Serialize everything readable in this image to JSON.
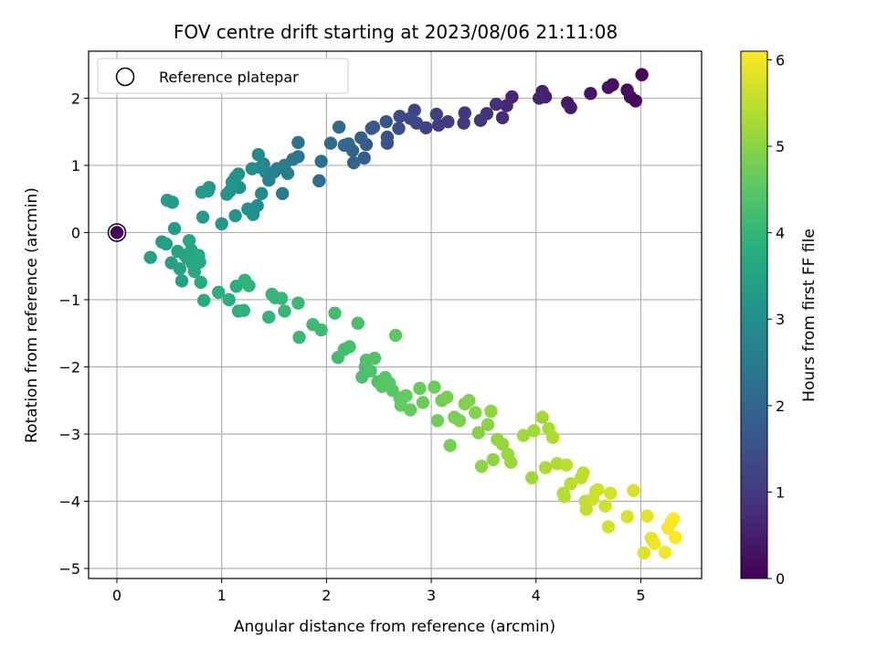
{
  "chart_data": {
    "type": "scatter",
    "title": "FOV centre drift starting at 2023/08/06 21:11:08",
    "xlabel": "Angular distance from reference (arcmin)",
    "ylabel": "Rotation from reference (arcmin)",
    "xlim": [
      -0.27,
      5.58
    ],
    "ylim": [
      -5.15,
      2.7
    ],
    "xticks": [
      0,
      1,
      2,
      3,
      4,
      5
    ],
    "yticks": [
      -5,
      -4,
      -3,
      -2,
      -1,
      0,
      1,
      2
    ],
    "grid": true,
    "legend": {
      "position": "top-left",
      "entries": [
        "Reference platepar"
      ]
    },
    "reference_point": {
      "x": 0,
      "y": 0
    },
    "colorbar": {
      "label": "Hours from first FF file",
      "range": [
        0,
        6.1
      ],
      "ticks": [
        0,
        1,
        2,
        3,
        4,
        5,
        6
      ],
      "colormap": "viridis"
    },
    "points": [
      {
        "x": 0.0,
        "y": 0.0,
        "h": 0.0
      },
      {
        "x": 5.01,
        "y": 2.35,
        "h": 0.05
      },
      {
        "x": 4.95,
        "y": 1.96,
        "h": 0.1
      },
      {
        "x": 4.9,
        "y": 2.02,
        "h": 0.15
      },
      {
        "x": 4.87,
        "y": 2.12,
        "h": 0.2
      },
      {
        "x": 4.73,
        "y": 2.2,
        "h": 0.25
      },
      {
        "x": 4.69,
        "y": 2.16,
        "h": 0.3
      },
      {
        "x": 4.52,
        "y": 2.07,
        "h": 0.35
      },
      {
        "x": 4.33,
        "y": 1.86,
        "h": 0.4
      },
      {
        "x": 4.3,
        "y": 1.93,
        "h": 0.45
      },
      {
        "x": 4.09,
        "y": 2.02,
        "h": 0.5
      },
      {
        "x": 4.06,
        "y": 2.1,
        "h": 0.55
      },
      {
        "x": 4.03,
        "y": 2.0,
        "h": 0.6
      },
      {
        "x": 3.77,
        "y": 2.02,
        "h": 0.65
      },
      {
        "x": 3.72,
        "y": 1.89,
        "h": 0.7
      },
      {
        "x": 3.68,
        "y": 1.71,
        "h": 0.75
      },
      {
        "x": 3.62,
        "y": 1.91,
        "h": 0.8
      },
      {
        "x": 3.53,
        "y": 1.77,
        "h": 0.85
      },
      {
        "x": 3.47,
        "y": 1.67,
        "h": 0.9
      },
      {
        "x": 3.32,
        "y": 1.78,
        "h": 0.95
      },
      {
        "x": 3.31,
        "y": 1.63,
        "h": 1.0
      },
      {
        "x": 3.16,
        "y": 1.65,
        "h": 1.05
      },
      {
        "x": 3.07,
        "y": 1.6,
        "h": 1.1
      },
      {
        "x": 3.05,
        "y": 1.76,
        "h": 1.15
      },
      {
        "x": 2.95,
        "y": 1.56,
        "h": 1.2
      },
      {
        "x": 2.84,
        "y": 1.82,
        "h": 1.25
      },
      {
        "x": 2.86,
        "y": 1.63,
        "h": 1.3
      },
      {
        "x": 2.8,
        "y": 1.7,
        "h": 1.35
      },
      {
        "x": 2.7,
        "y": 1.73,
        "h": 1.4
      },
      {
        "x": 2.69,
        "y": 1.55,
        "h": 1.45
      },
      {
        "x": 2.58,
        "y": 1.42,
        "h": 1.5
      },
      {
        "x": 2.58,
        "y": 1.33,
        "h": 1.55
      },
      {
        "x": 2.57,
        "y": 1.65,
        "h": 1.6
      },
      {
        "x": 2.45,
        "y": 1.57,
        "h": 1.65
      },
      {
        "x": 2.43,
        "y": 1.55,
        "h": 1.7
      },
      {
        "x": 2.38,
        "y": 1.31,
        "h": 1.75
      },
      {
        "x": 2.36,
        "y": 1.11,
        "h": 1.8
      },
      {
        "x": 2.33,
        "y": 1.41,
        "h": 1.85
      },
      {
        "x": 2.26,
        "y": 1.04,
        "h": 1.9
      },
      {
        "x": 2.25,
        "y": 1.22,
        "h": 1.95
      },
      {
        "x": 2.21,
        "y": 1.32,
        "h": 2.0
      },
      {
        "x": 2.17,
        "y": 1.3,
        "h": 2.05
      },
      {
        "x": 2.12,
        "y": 1.57,
        "h": 2.1
      },
      {
        "x": 2.04,
        "y": 1.33,
        "h": 2.15
      },
      {
        "x": 1.93,
        "y": 0.77,
        "h": 2.2
      },
      {
        "x": 1.95,
        "y": 1.06,
        "h": 2.25
      },
      {
        "x": 1.73,
        "y": 1.34,
        "h": 2.3
      },
      {
        "x": 1.73,
        "y": 1.13,
        "h": 2.35
      },
      {
        "x": 1.68,
        "y": 1.09,
        "h": 2.4
      },
      {
        "x": 1.58,
        "y": 0.58,
        "h": 2.45
      },
      {
        "x": 1.63,
        "y": 0.88,
        "h": 2.5
      },
      {
        "x": 1.6,
        "y": 1.0,
        "h": 2.55
      },
      {
        "x": 1.53,
        "y": 0.95,
        "h": 2.6
      },
      {
        "x": 1.5,
        "y": 0.9,
        "h": 2.65
      },
      {
        "x": 1.45,
        "y": 0.78,
        "h": 2.7
      },
      {
        "x": 1.42,
        "y": 0.9,
        "h": 2.75
      },
      {
        "x": 1.4,
        "y": 1.02,
        "h": 2.8
      },
      {
        "x": 1.35,
        "y": 1.16,
        "h": 2.85
      },
      {
        "x": 1.37,
        "y": 0.97,
        "h": 2.9
      },
      {
        "x": 1.34,
        "y": 0.4,
        "h": 2.95
      },
      {
        "x": 1.3,
        "y": 0.27,
        "h": 3.0
      },
      {
        "x": 1.38,
        "y": 0.58,
        "h": 2.9
      },
      {
        "x": 1.29,
        "y": 0.95,
        "h": 3.0
      },
      {
        "x": 1.25,
        "y": 0.35,
        "h": 3.05
      },
      {
        "x": 1.17,
        "y": 0.67,
        "h": 3.05
      },
      {
        "x": 1.16,
        "y": 0.87,
        "h": 3.1
      },
      {
        "x": 1.13,
        "y": 0.82,
        "h": 3.1
      },
      {
        "x": 1.13,
        "y": 0.25,
        "h": 3.15
      },
      {
        "x": 1.08,
        "y": 0.62,
        "h": 3.15
      },
      {
        "x": 1.1,
        "y": 0.75,
        "h": 3.15
      },
      {
        "x": 1.05,
        "y": 0.57,
        "h": 3.2
      },
      {
        "x": 1.0,
        "y": 0.13,
        "h": 3.2
      },
      {
        "x": 0.88,
        "y": 0.67,
        "h": 3.25
      },
      {
        "x": 0.87,
        "y": 0.62,
        "h": 3.25
      },
      {
        "x": 0.81,
        "y": 0.6,
        "h": 3.3
      },
      {
        "x": 0.82,
        "y": 0.23,
        "h": 3.3
      },
      {
        "x": 0.55,
        "y": 0.06,
        "h": 3.35
      },
      {
        "x": 0.53,
        "y": 0.45,
        "h": 3.35
      },
      {
        "x": 0.48,
        "y": 0.48,
        "h": 3.35
      },
      {
        "x": 0.43,
        "y": -0.14,
        "h": 3.4
      },
      {
        "x": 0.47,
        "y": -0.17,
        "h": 3.4
      },
      {
        "x": 0.32,
        "y": -0.37,
        "h": 3.45
      },
      {
        "x": 0.52,
        "y": -0.45,
        "h": 3.45
      },
      {
        "x": 0.58,
        "y": -0.28,
        "h": 3.5
      },
      {
        "x": 0.6,
        "y": -0.54,
        "h": 3.5
      },
      {
        "x": 0.62,
        "y": -0.72,
        "h": 3.5
      },
      {
        "x": 0.65,
        "y": -0.34,
        "h": 3.55
      },
      {
        "x": 0.67,
        "y": -0.38,
        "h": 3.55
      },
      {
        "x": 0.69,
        "y": -0.12,
        "h": 3.6
      },
      {
        "x": 0.71,
        "y": -0.26,
        "h": 3.6
      },
      {
        "x": 0.72,
        "y": -0.46,
        "h": 3.65
      },
      {
        "x": 0.74,
        "y": -0.58,
        "h": 3.65
      },
      {
        "x": 0.78,
        "y": -0.34,
        "h": 3.7
      },
      {
        "x": 0.79,
        "y": -0.44,
        "h": 3.7
      },
      {
        "x": 0.8,
        "y": -0.74,
        "h": 3.75
      },
      {
        "x": 0.83,
        "y": -1.01,
        "h": 3.75
      },
      {
        "x": 0.97,
        "y": -0.89,
        "h": 3.8
      },
      {
        "x": 1.07,
        "y": -1.0,
        "h": 3.8
      },
      {
        "x": 1.14,
        "y": -0.8,
        "h": 3.85
      },
      {
        "x": 1.16,
        "y": -1.17,
        "h": 3.85
      },
      {
        "x": 1.21,
        "y": -1.16,
        "h": 3.9
      },
      {
        "x": 1.22,
        "y": -0.71,
        "h": 3.9
      },
      {
        "x": 1.26,
        "y": -0.79,
        "h": 3.95
      },
      {
        "x": 1.45,
        "y": -1.26,
        "h": 3.95
      },
      {
        "x": 1.48,
        "y": -0.92,
        "h": 4.0
      },
      {
        "x": 1.51,
        "y": -0.97,
        "h": 4.0
      },
      {
        "x": 1.57,
        "y": -0.98,
        "h": 4.05
      },
      {
        "x": 1.6,
        "y": -1.17,
        "h": 4.05
      },
      {
        "x": 1.73,
        "y": -1.05,
        "h": 4.1
      },
      {
        "x": 1.74,
        "y": -1.56,
        "h": 4.1
      },
      {
        "x": 1.87,
        "y": -1.37,
        "h": 4.15
      },
      {
        "x": 1.95,
        "y": -1.45,
        "h": 4.15
      },
      {
        "x": 2.08,
        "y": -1.2,
        "h": 4.2
      },
      {
        "x": 2.11,
        "y": -1.86,
        "h": 4.2
      },
      {
        "x": 2.17,
        "y": -1.74,
        "h": 4.25
      },
      {
        "x": 2.22,
        "y": -1.7,
        "h": 4.25
      },
      {
        "x": 2.3,
        "y": -1.35,
        "h": 4.3
      },
      {
        "x": 2.34,
        "y": -2.15,
        "h": 4.3
      },
      {
        "x": 2.37,
        "y": -2.0,
        "h": 4.3
      },
      {
        "x": 2.38,
        "y": -1.9,
        "h": 4.35
      },
      {
        "x": 2.42,
        "y": -2.06,
        "h": 4.35
      },
      {
        "x": 2.46,
        "y": -1.87,
        "h": 4.4
      },
      {
        "x": 2.49,
        "y": -2.22,
        "h": 4.4
      },
      {
        "x": 2.53,
        "y": -2.29,
        "h": 4.45
      },
      {
        "x": 2.56,
        "y": -2.16,
        "h": 4.45
      },
      {
        "x": 2.6,
        "y": -2.24,
        "h": 4.5
      },
      {
        "x": 2.63,
        "y": -2.35,
        "h": 4.5
      },
      {
        "x": 2.66,
        "y": -1.53,
        "h": 4.55
      },
      {
        "x": 2.7,
        "y": -2.46,
        "h": 4.55
      },
      {
        "x": 2.71,
        "y": -2.57,
        "h": 4.6
      },
      {
        "x": 2.76,
        "y": -2.43,
        "h": 4.6
      },
      {
        "x": 2.8,
        "y": -2.64,
        "h": 4.65
      },
      {
        "x": 2.89,
        "y": -2.32,
        "h": 4.65
      },
      {
        "x": 2.92,
        "y": -2.53,
        "h": 4.7
      },
      {
        "x": 3.03,
        "y": -2.3,
        "h": 4.7
      },
      {
        "x": 3.06,
        "y": -2.8,
        "h": 4.75
      },
      {
        "x": 3.1,
        "y": -2.5,
        "h": 4.75
      },
      {
        "x": 3.15,
        "y": -2.45,
        "h": 4.8
      },
      {
        "x": 3.18,
        "y": -3.17,
        "h": 4.8
      },
      {
        "x": 3.22,
        "y": -2.75,
        "h": 4.85
      },
      {
        "x": 3.27,
        "y": -2.8,
        "h": 4.85
      },
      {
        "x": 3.32,
        "y": -2.55,
        "h": 4.9
      },
      {
        "x": 3.36,
        "y": -2.5,
        "h": 4.9
      },
      {
        "x": 3.42,
        "y": -2.68,
        "h": 4.95
      },
      {
        "x": 3.45,
        "y": -2.98,
        "h": 4.95
      },
      {
        "x": 3.48,
        "y": -3.48,
        "h": 5.0
      },
      {
        "x": 3.54,
        "y": -2.86,
        "h": 5.0
      },
      {
        "x": 3.57,
        "y": -2.66,
        "h": 5.05
      },
      {
        "x": 3.59,
        "y": -3.38,
        "h": 5.05
      },
      {
        "x": 3.63,
        "y": -3.08,
        "h": 5.1
      },
      {
        "x": 3.68,
        "y": -3.15,
        "h": 5.1
      },
      {
        "x": 3.73,
        "y": -3.3,
        "h": 5.15
      },
      {
        "x": 3.76,
        "y": -3.42,
        "h": 5.15
      },
      {
        "x": 3.88,
        "y": -3.02,
        "h": 5.2
      },
      {
        "x": 3.96,
        "y": -3.65,
        "h": 5.2
      },
      {
        "x": 3.98,
        "y": -2.95,
        "h": 5.25
      },
      {
        "x": 4.06,
        "y": -2.75,
        "h": 5.25
      },
      {
        "x": 4.09,
        "y": -3.5,
        "h": 5.3
      },
      {
        "x": 4.12,
        "y": -2.92,
        "h": 5.3
      },
      {
        "x": 4.16,
        "y": -3.05,
        "h": 5.35
      },
      {
        "x": 4.2,
        "y": -3.44,
        "h": 5.35
      },
      {
        "x": 4.26,
        "y": -3.88,
        "h": 5.4
      },
      {
        "x": 4.27,
        "y": -3.93,
        "h": 5.4
      },
      {
        "x": 4.29,
        "y": -3.46,
        "h": 5.45
      },
      {
        "x": 4.33,
        "y": -3.74,
        "h": 5.45
      },
      {
        "x": 4.43,
        "y": -3.65,
        "h": 5.5
      },
      {
        "x": 4.45,
        "y": -3.58,
        "h": 5.5
      },
      {
        "x": 4.47,
        "y": -4.0,
        "h": 5.55
      },
      {
        "x": 4.48,
        "y": -4.12,
        "h": 5.55
      },
      {
        "x": 4.54,
        "y": -3.97,
        "h": 5.6
      },
      {
        "x": 4.57,
        "y": -3.85,
        "h": 5.6
      },
      {
        "x": 4.59,
        "y": -3.83,
        "h": 5.65
      },
      {
        "x": 4.66,
        "y": -4.07,
        "h": 5.65
      },
      {
        "x": 4.69,
        "y": -4.38,
        "h": 5.7
      },
      {
        "x": 4.71,
        "y": -3.88,
        "h": 5.7
      },
      {
        "x": 4.87,
        "y": -4.23,
        "h": 5.75
      },
      {
        "x": 4.93,
        "y": -3.84,
        "h": 5.75
      },
      {
        "x": 5.03,
        "y": -4.77,
        "h": 5.8
      },
      {
        "x": 5.06,
        "y": -4.22,
        "h": 5.85
      },
      {
        "x": 5.1,
        "y": -4.55,
        "h": 5.9
      },
      {
        "x": 5.13,
        "y": -4.63,
        "h": 5.95
      },
      {
        "x": 5.23,
        "y": -4.76,
        "h": 6.0
      },
      {
        "x": 5.26,
        "y": -4.4,
        "h": 6.02
      },
      {
        "x": 5.29,
        "y": -4.31,
        "h": 6.05
      },
      {
        "x": 5.31,
        "y": -4.26,
        "h": 6.08
      },
      {
        "x": 5.33,
        "y": -4.54,
        "h": 6.1
      }
    ]
  }
}
